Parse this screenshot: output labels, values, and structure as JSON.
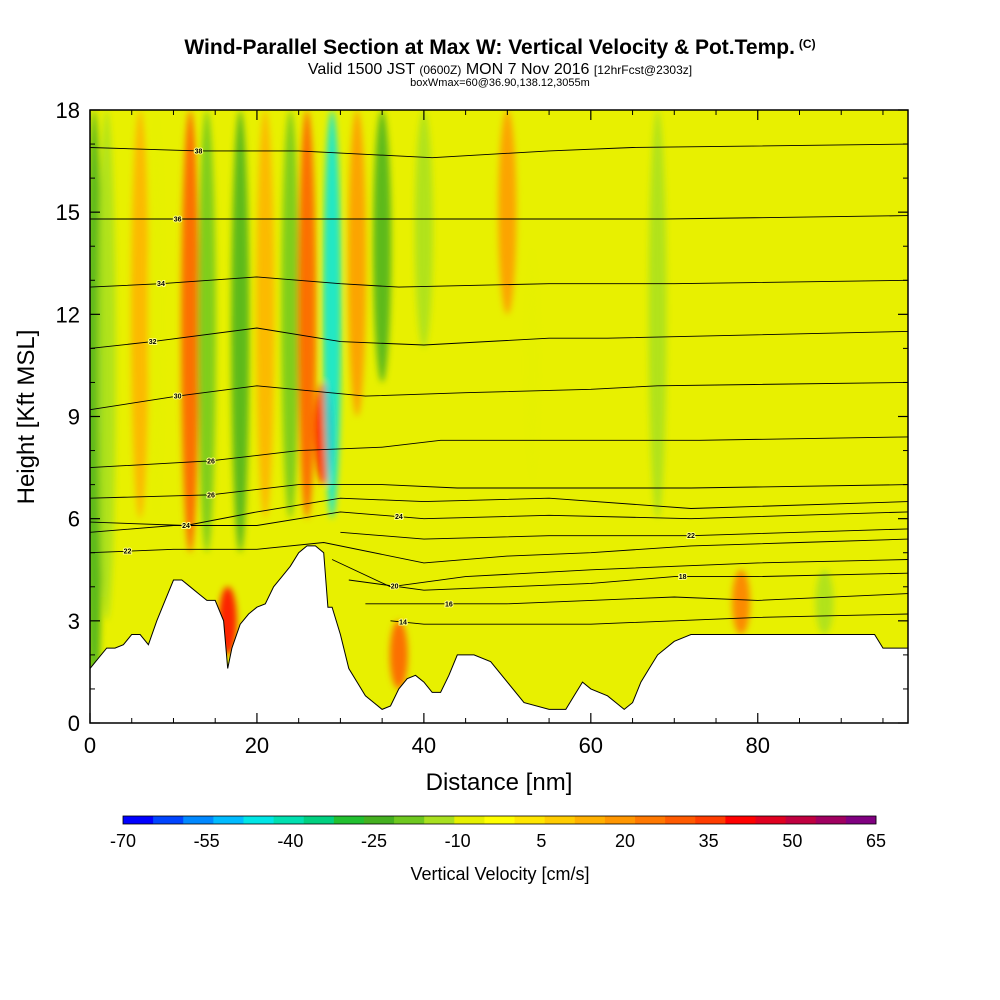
{
  "header": {
    "title": "Wind-Parallel Section at Max W: Vertical Velocity & Pot.Temp.",
    "copyright": "(C)",
    "subtitle_a": "Valid 1500 JST",
    "subtitle_b": "(0600Z)",
    "subtitle_c": "MON 7 Nov 2016",
    "subtitle_d": "[12hrFcst@2303z]",
    "subline": "boxWmax=60@36.90,138.12,3055m"
  },
  "chart_data": {
    "type": "heatmap",
    "xlabel": "Distance [nm]",
    "ylabel": "Height [Kft MSL]",
    "xlim": [
      0,
      98
    ],
    "ylim": [
      0,
      18
    ],
    "xticks": [
      0,
      20,
      40,
      60,
      80
    ],
    "yticks": [
      0,
      3,
      6,
      9,
      12,
      15,
      18
    ],
    "colorbar": {
      "title": "Vertical Velocity [cm/s]",
      "tick_labels": [
        "-70",
        "-55",
        "-40",
        "-25",
        "-10",
        "5",
        "20",
        "35",
        "50",
        "65"
      ],
      "colors": [
        "#0000ff",
        "#0044ff",
        "#0088ff",
        "#00bbff",
        "#00e6e6",
        "#00e0b0",
        "#00d080",
        "#22c030",
        "#44b020",
        "#6ec820",
        "#a8e020",
        "#e6f000",
        "#ffff00",
        "#ffe600",
        "#ffcc00",
        "#ffb000",
        "#ff9600",
        "#ff7800",
        "#ff5a00",
        "#ff3c00",
        "#ff0000",
        "#e00020",
        "#c00040",
        "#a00060",
        "#800080"
      ]
    },
    "terrain": [
      [
        0,
        1.6
      ],
      [
        1,
        1.9
      ],
      [
        2,
        2.2
      ],
      [
        3,
        2.2
      ],
      [
        4,
        2.3
      ],
      [
        5,
        2.6
      ],
      [
        6,
        2.6
      ],
      [
        7,
        2.3
      ],
      [
        8,
        3.0
      ],
      [
        9,
        3.6
      ],
      [
        10,
        4.2
      ],
      [
        11,
        4.2
      ],
      [
        12,
        4.0
      ],
      [
        13,
        3.8
      ],
      [
        14,
        3.6
      ],
      [
        15,
        3.6
      ],
      [
        16,
        3.0
      ],
      [
        16.5,
        1.6
      ],
      [
        17,
        2.2
      ],
      [
        18,
        2.9
      ],
      [
        19,
        3.2
      ],
      [
        20,
        3.4
      ],
      [
        21,
        3.5
      ],
      [
        22,
        4.0
      ],
      [
        23,
        4.3
      ],
      [
        24,
        4.6
      ],
      [
        25,
        5.0
      ],
      [
        26,
        5.2
      ],
      [
        27,
        5.2
      ],
      [
        28,
        5.0
      ],
      [
        28.5,
        3.4
      ],
      [
        29,
        3.4
      ],
      [
        30,
        2.6
      ],
      [
        31,
        1.6
      ],
      [
        32,
        1.2
      ],
      [
        33,
        0.8
      ],
      [
        34,
        0.6
      ],
      [
        35,
        0.4
      ],
      [
        36,
        0.5
      ],
      [
        37,
        1.0
      ],
      [
        38,
        1.3
      ],
      [
        39,
        1.4
      ],
      [
        40,
        1.2
      ],
      [
        41,
        0.9
      ],
      [
        42,
        0.9
      ],
      [
        43,
        1.4
      ],
      [
        44,
        2.0
      ],
      [
        46,
        2.0
      ],
      [
        48,
        1.8
      ],
      [
        50,
        1.2
      ],
      [
        52,
        0.6
      ],
      [
        55,
        0.4
      ],
      [
        57,
        0.4
      ],
      [
        58,
        0.8
      ],
      [
        59,
        1.2
      ],
      [
        60,
        1.0
      ],
      [
        62,
        0.8
      ],
      [
        63,
        0.6
      ],
      [
        64,
        0.4
      ],
      [
        65,
        0.6
      ],
      [
        66,
        1.2
      ],
      [
        67,
        1.6
      ],
      [
        68,
        2.0
      ],
      [
        70,
        2.4
      ],
      [
        72,
        2.6
      ],
      [
        75,
        2.6
      ],
      [
        78,
        2.6
      ],
      [
        82,
        2.6
      ],
      [
        86,
        2.6
      ],
      [
        90,
        2.6
      ],
      [
        94,
        2.6
      ],
      [
        95,
        2.2
      ],
      [
        98,
        2.2
      ]
    ],
    "theta_contours": [
      {
        "label": "14",
        "label_x": 37.5,
        "pts": [
          [
            36,
            3.0
          ],
          [
            40,
            2.9
          ],
          [
            50,
            2.9
          ],
          [
            60,
            2.9
          ],
          [
            70,
            3.0
          ],
          [
            80,
            3.1
          ],
          [
            98,
            3.2
          ]
        ]
      },
      {
        "label": "16",
        "label_x": 43,
        "pts": [
          [
            33,
            3.5
          ],
          [
            40,
            3.5
          ],
          [
            50,
            3.5
          ],
          [
            60,
            3.6
          ],
          [
            70,
            3.7
          ],
          [
            80,
            3.6
          ],
          [
            98,
            3.8
          ]
        ]
      },
      {
        "label": "18",
        "label_x": 71,
        "pts": [
          [
            31,
            4.2
          ],
          [
            40,
            3.9
          ],
          [
            50,
            4.0
          ],
          [
            60,
            4.1
          ],
          [
            70,
            4.3
          ],
          [
            80,
            4.3
          ],
          [
            98,
            4.4
          ]
        ]
      },
      {
        "label": "20",
        "label_x": 36.5,
        "pts": [
          [
            29,
            4.8
          ],
          [
            36,
            4.0
          ],
          [
            45,
            4.3
          ],
          [
            60,
            4.5
          ],
          [
            70,
            4.6
          ],
          [
            80,
            4.7
          ],
          [
            98,
            4.8
          ]
        ]
      },
      {
        "label": "22",
        "label_x": 4.5,
        "pts": [
          [
            0,
            5.0
          ],
          [
            10,
            5.1
          ],
          [
            20,
            5.1
          ],
          [
            28,
            5.3
          ],
          [
            40,
            4.7
          ],
          [
            50,
            4.9
          ],
          [
            60,
            5.0
          ],
          [
            72,
            5.2
          ],
          [
            85,
            5.3
          ],
          [
            98,
            5.4
          ]
        ]
      },
      {
        "label": "22",
        "label_x": 72,
        "pts": [
          [
            30,
            5.6
          ],
          [
            40,
            5.4
          ],
          [
            55,
            5.5
          ],
          [
            72,
            5.5
          ],
          [
            98,
            5.7
          ]
        ]
      },
      {
        "label": "24",
        "label_x": 37,
        "pts": [
          [
            0,
            5.6
          ],
          [
            10,
            5.8
          ],
          [
            20,
            5.8
          ],
          [
            30,
            6.2
          ],
          [
            40,
            6.0
          ],
          [
            55,
            6.1
          ],
          [
            72,
            6.0
          ],
          [
            98,
            6.2
          ]
        ]
      },
      {
        "label": "24",
        "label_x": 11.5,
        "pts": [
          [
            0,
            5.9
          ],
          [
            11.5,
            5.8
          ],
          [
            20,
            6.2
          ],
          [
            30,
            6.6
          ],
          [
            40,
            6.5
          ],
          [
            55,
            6.6
          ],
          [
            72,
            6.3
          ],
          [
            98,
            6.5
          ]
        ]
      },
      {
        "label": "26",
        "label_x": 14.5,
        "pts": [
          [
            0,
            6.6
          ],
          [
            14.5,
            6.7
          ],
          [
            25,
            7.0
          ],
          [
            35,
            7.0
          ],
          [
            44,
            6.9
          ],
          [
            60,
            6.9
          ],
          [
            72,
            6.9
          ],
          [
            98,
            7.0
          ]
        ]
      },
      {
        "label": "26",
        "label_x": 14.5,
        "pts": [
          [
            0,
            7.5
          ],
          [
            14.5,
            7.7
          ],
          [
            25,
            8.0
          ],
          [
            35,
            8.1
          ],
          [
            42,
            8.3
          ],
          [
            60,
            8.3
          ],
          [
            73,
            8.3
          ],
          [
            98,
            8.4
          ]
        ]
      },
      {
        "label": "30",
        "label_x": 10.5,
        "pts": [
          [
            0,
            9.2
          ],
          [
            10.5,
            9.6
          ],
          [
            20,
            9.9
          ],
          [
            33,
            9.6
          ],
          [
            45,
            9.7
          ],
          [
            60,
            9.8
          ],
          [
            68,
            9.9
          ],
          [
            98,
            10.0
          ]
        ]
      },
      {
        "label": "32",
        "label_x": 7.5,
        "pts": [
          [
            0,
            11.0
          ],
          [
            7.5,
            11.2
          ],
          [
            20,
            11.6
          ],
          [
            30,
            11.2
          ],
          [
            40,
            11.1
          ],
          [
            55,
            11.3
          ],
          [
            62,
            11.3
          ],
          [
            98,
            11.5
          ]
        ]
      },
      {
        "label": "34",
        "label_x": 8.5,
        "pts": [
          [
            0,
            12.8
          ],
          [
            8.5,
            12.9
          ],
          [
            20,
            13.1
          ],
          [
            30,
            12.9
          ],
          [
            37,
            12.8
          ],
          [
            55,
            12.9
          ],
          [
            70,
            12.9
          ],
          [
            98,
            13.0
          ]
        ]
      },
      {
        "label": "36",
        "label_x": 10.5,
        "pts": [
          [
            0,
            14.8
          ],
          [
            10.5,
            14.8
          ],
          [
            20,
            14.8
          ],
          [
            30,
            14.8
          ],
          [
            41,
            14.8
          ],
          [
            55,
            14.8
          ],
          [
            69,
            14.8
          ],
          [
            98,
            14.9
          ]
        ]
      },
      {
        "label": "38",
        "label_x": 13,
        "pts": [
          [
            0,
            16.9
          ],
          [
            13,
            16.8
          ],
          [
            25,
            16.8
          ],
          [
            41,
            16.6
          ],
          [
            55,
            16.8
          ],
          [
            65,
            16.9
          ],
          [
            98,
            17.0
          ]
        ]
      }
    ],
    "w_field_cm_s": [
      {
        "x": 0.5,
        "y0": 0,
        "y1": 18,
        "w": -22
      },
      {
        "x": 2,
        "y0": 3,
        "y1": 18,
        "w": -12
      },
      {
        "x": 6,
        "y0": 6,
        "y1": 18,
        "w": 14
      },
      {
        "x": 8,
        "y0": 6,
        "y1": 18,
        "w": -8
      },
      {
        "x": 12,
        "y0": 5,
        "y1": 18,
        "w": 28
      },
      {
        "x": 14,
        "y0": 5,
        "y1": 18,
        "w": -20
      },
      {
        "x": 16.5,
        "y0": 2,
        "y1": 4,
        "w": 40
      },
      {
        "x": 18,
        "y0": 5,
        "y1": 18,
        "w": -25
      },
      {
        "x": 21,
        "y0": 6,
        "y1": 18,
        "w": 14
      },
      {
        "x": 24,
        "y0": 6,
        "y1": 18,
        "w": -18
      },
      {
        "x": 26,
        "y0": 6,
        "y1": 18,
        "w": 30
      },
      {
        "x": 28,
        "y0": 7,
        "y1": 10,
        "w": 42
      },
      {
        "x": 29,
        "y0": 6,
        "y1": 18,
        "w": -45
      },
      {
        "x": 32,
        "y0": 9,
        "y1": 18,
        "w": 18
      },
      {
        "x": 35,
        "y0": 10,
        "y1": 18,
        "w": -22
      },
      {
        "x": 37,
        "y0": 1,
        "y1": 3,
        "w": 28
      },
      {
        "x": 40,
        "y0": 11,
        "y1": 18,
        "w": -12
      },
      {
        "x": 50,
        "y0": 12,
        "y1": 18,
        "w": 18
      },
      {
        "x": 53,
        "y0": 7,
        "y1": 14,
        "w": -10
      },
      {
        "x": 68,
        "y0": 6,
        "y1": 18,
        "w": -12
      },
      {
        "x": 78,
        "y0": 2.6,
        "y1": 4.5,
        "w": 22
      },
      {
        "x": 88,
        "y0": 2.6,
        "y1": 4.5,
        "w": -12
      }
    ]
  }
}
